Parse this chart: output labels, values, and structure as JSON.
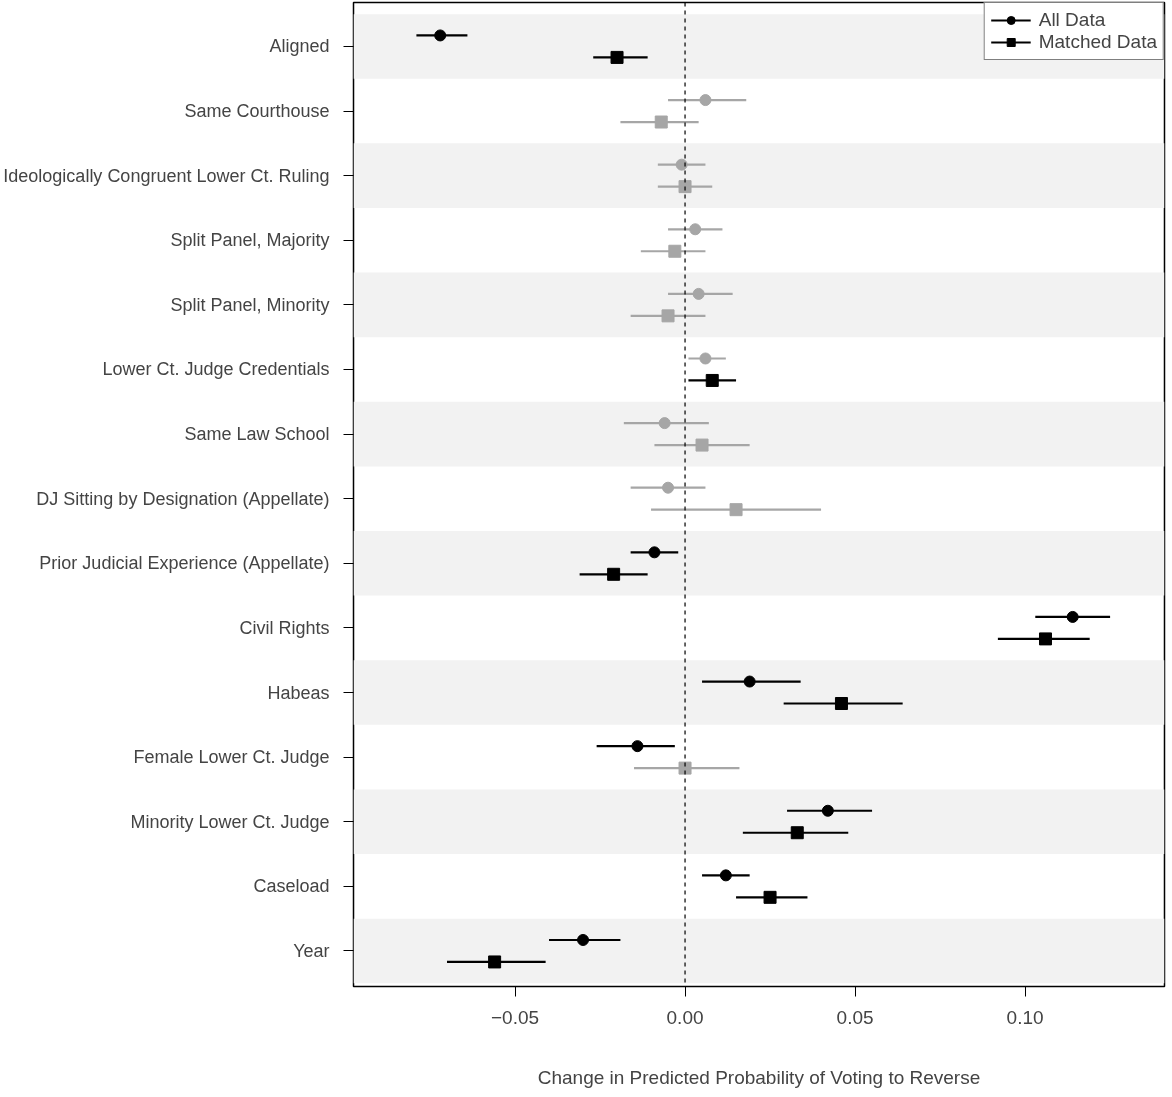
{
  "chart_data": {
    "type": "scatter",
    "orientation": "horizontal",
    "xlabel": "Change in Predicted Probability of Voting to Reverse",
    "categories": [
      "Aligned",
      "Same Courthouse",
      "Ideologically Congruent Lower Ct. Ruling",
      "Split Panel, Majority",
      "Split Panel, Minority",
      "Lower Ct. Judge Credentials",
      "Same Law School",
      "DJ Sitting by Designation (Appellate)",
      "Prior Judicial Experience (Appellate)",
      "Civil Rights",
      "Habeas",
      "Female Lower Ct. Judge",
      "Minority Lower Ct. Judge",
      "Caseload",
      "Year"
    ],
    "series": [
      {
        "name": "All Data",
        "color": "#000000",
        "marker": "circle",
        "colors": [
          "#000000",
          "#a6a6a6",
          "#a6a6a6",
          "#a6a6a6",
          "#a6a6a6",
          "#a6a6a6",
          "#a6a6a6",
          "#a6a6a6",
          "#000000",
          "#000000",
          "#000000",
          "#000000",
          "#000000",
          "#000000",
          "#000000"
        ],
        "values": [
          -0.072,
          0.006,
          -0.001,
          0.003,
          0.004,
          0.006,
          -0.006,
          -0.005,
          -0.009,
          0.114,
          0.019,
          -0.014,
          0.042,
          0.012,
          -0.03
        ],
        "errors": [
          [
            -0.079,
            -0.064
          ],
          [
            -0.005,
            0.018
          ],
          [
            -0.008,
            0.006
          ],
          [
            -0.005,
            0.011
          ],
          [
            -0.005,
            0.014
          ],
          [
            0.001,
            0.012
          ],
          [
            -0.018,
            0.007
          ],
          [
            -0.016,
            0.006
          ],
          [
            -0.016,
            -0.002
          ],
          [
            0.103,
            0.125
          ],
          [
            0.005,
            0.034
          ],
          [
            -0.026,
            -0.003
          ],
          [
            0.03,
            0.055
          ],
          [
            0.005,
            0.019
          ],
          [
            -0.04,
            -0.019
          ]
        ]
      },
      {
        "name": "Matched Data",
        "color": "#000000",
        "marker": "square",
        "colors": [
          "#000000",
          "#a6a6a6",
          "#a6a6a6",
          "#a6a6a6",
          "#a6a6a6",
          "#000000",
          "#a6a6a6",
          "#a6a6a6",
          "#000000",
          "#000000",
          "#000000",
          "#a6a6a6",
          "#000000",
          "#000000",
          "#000000"
        ],
        "values": [
          -0.02,
          -0.007,
          0.0,
          -0.003,
          -0.005,
          0.008,
          0.005,
          0.015,
          -0.021,
          0.106,
          0.046,
          0.0,
          0.033,
          0.025,
          -0.056
        ],
        "errors": [
          [
            -0.027,
            -0.011
          ],
          [
            -0.019,
            0.004
          ],
          [
            -0.008,
            0.008
          ],
          [
            -0.013,
            0.006
          ],
          [
            -0.016,
            0.006
          ],
          [
            0.001,
            0.015
          ],
          [
            -0.009,
            0.019
          ],
          [
            -0.01,
            0.04
          ],
          [
            -0.031,
            -0.011
          ],
          [
            0.092,
            0.119
          ],
          [
            0.029,
            0.064
          ],
          [
            -0.015,
            0.016
          ],
          [
            0.017,
            0.048
          ],
          [
            0.015,
            0.036
          ],
          [
            -0.07,
            -0.041
          ]
        ]
      }
    ],
    "xlim": [
      -0.0975,
      0.141
    ],
    "xticks": [
      {
        "value": -0.05,
        "label": "−0.05"
      },
      {
        "value": 0,
        "label": "0.00"
      },
      {
        "value": 0.05,
        "label": "0.05"
      },
      {
        "value": 0.1,
        "label": "0.10"
      }
    ],
    "ref_lines": [
      {
        "axis": "x",
        "value": 0,
        "line_style": "dashed",
        "color": "#000000"
      }
    ],
    "bands": [
      {
        "axis": "y",
        "from": "Aligned",
        "to": "Aligned",
        "color": "#f2f2f2"
      },
      {
        "axis": "y",
        "from": "Ideologically Congruent Lower Ct. Ruling",
        "to": "Ideologically Congruent Lower Ct. Ruling",
        "color": "#f2f2f2"
      },
      {
        "axis": "y",
        "from": "Split Panel, Minority",
        "to": "Split Panel, Minority",
        "color": "#f2f2f2"
      },
      {
        "axis": "y",
        "from": "Same Law School",
        "to": "Same Law School",
        "color": "#f2f2f2"
      },
      {
        "axis": "y",
        "from": "Prior Judicial Experience (Appellate)",
        "to": "Prior Judicial Experience (Appellate)",
        "color": "#f2f2f2"
      },
      {
        "axis": "y",
        "from": "Habeas",
        "to": "Habeas",
        "color": "#f2f2f2"
      },
      {
        "axis": "y",
        "from": "Minority Lower Ct. Judge",
        "to": "Minority Lower Ct. Judge",
        "color": "#f2f2f2"
      },
      {
        "axis": "y",
        "from": "Year",
        "to": "Year",
        "color": "#f2f2f2"
      }
    ],
    "grid": false,
    "legend": "top right"
  }
}
